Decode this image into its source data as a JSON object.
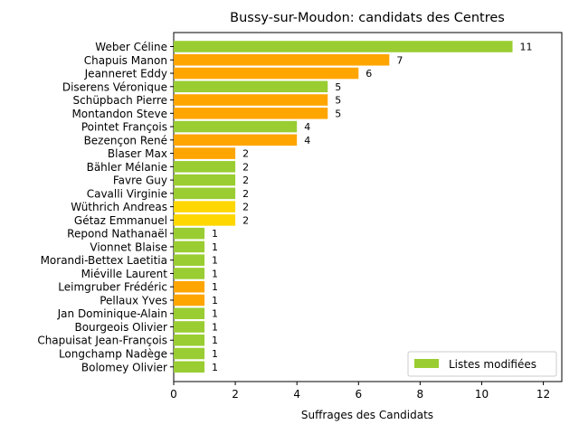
{
  "chart_data": {
    "type": "bar",
    "orientation": "horizontal",
    "title": "Bussy-sur-Moudon: candidats des Centres",
    "xlabel": "Suffrages des Candidats",
    "ylabel": "",
    "xlim": [
      0,
      12.6
    ],
    "xticks": [
      0,
      2,
      4,
      6,
      8,
      10,
      12
    ],
    "grid": false,
    "legend": {
      "placement": "lower-right",
      "entries": [
        {
          "label": "Listes modifiées",
          "color": "#9acd32"
        }
      ]
    },
    "colors": {
      "green": "#9acd32",
      "orange": "#ffa500",
      "gold": "#ffd700"
    },
    "categories": [
      "Weber Céline",
      "Chapuis Manon",
      "Jeanneret Eddy",
      "Diserens Véronique",
      "Schüpbach Pierre",
      "Montandon Steve",
      "Pointet François",
      "Bezençon René",
      "Blaser Max",
      "Bähler Mélanie",
      "Favre Guy",
      "Cavalli Virginie",
      "Wüthrich Andreas",
      "Gétaz Emmanuel",
      "Repond Nathanaël",
      "Vionnet Blaise",
      "Morandi-Bettex Laetitia",
      "Miéville Laurent",
      "Leimgruber Frédéric",
      "Pellaux Yves",
      "Jan Dominique-Alain",
      "Bourgeois Olivier",
      "Chapuisat Jean-François",
      "Longchamp Nadège",
      "Bolomey Olivier"
    ],
    "values": [
      11,
      7,
      6,
      5,
      5,
      5,
      4,
      4,
      2,
      2,
      2,
      2,
      2,
      2,
      1,
      1,
      1,
      1,
      1,
      1,
      1,
      1,
      1,
      1,
      1
    ],
    "bar_colors": [
      "green",
      "orange",
      "orange",
      "green",
      "orange",
      "orange",
      "green",
      "orange",
      "orange",
      "green",
      "green",
      "green",
      "gold",
      "gold",
      "green",
      "green",
      "green",
      "green",
      "orange",
      "orange",
      "green",
      "green",
      "green",
      "green",
      "green"
    ]
  }
}
